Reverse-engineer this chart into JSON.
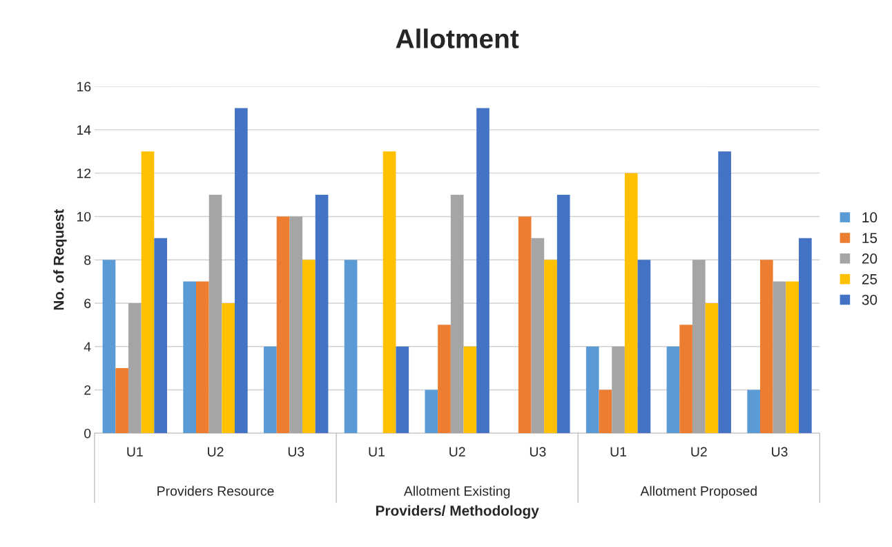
{
  "chart_data": {
    "type": "bar",
    "title": "Allotment",
    "xlabel": "Providers/ Methodology",
    "ylabel": "No. of Request",
    "categories": [
      "U1",
      "U2",
      "U3",
      "U1",
      "U2",
      "U3",
      "U1",
      "U2",
      "U3"
    ],
    "annotations": [
      "Providers Resource",
      "Allotment Existing",
      "Allotment Proposed"
    ],
    "series": [
      {
        "name": "10",
        "color": "#5b9bd5",
        "values": [
          8,
          7,
          4,
          8,
          2,
          0,
          4,
          4,
          2
        ]
      },
      {
        "name": "15",
        "color": "#ed7d31",
        "values": [
          3,
          7,
          10,
          0,
          5,
          10,
          2,
          5,
          8
        ]
      },
      {
        "name": "20",
        "color": "#a5a5a5",
        "values": [
          6,
          11,
          10,
          0,
          11,
          9,
          4,
          8,
          7
        ]
      },
      {
        "name": "25",
        "color": "#ffc000",
        "values": [
          13,
          6,
          8,
          13,
          4,
          8,
          12,
          6,
          7
        ]
      },
      {
        "name": "30",
        "color": "#4472c4",
        "values": [
          9,
          15,
          11,
          4,
          15,
          11,
          8,
          13,
          9
        ]
      }
    ],
    "ylim": [
      0,
      16
    ],
    "yticks": [
      0,
      2,
      4,
      6,
      8,
      10,
      12,
      14,
      16
    ],
    "grid": "y",
    "legend": "right"
  }
}
